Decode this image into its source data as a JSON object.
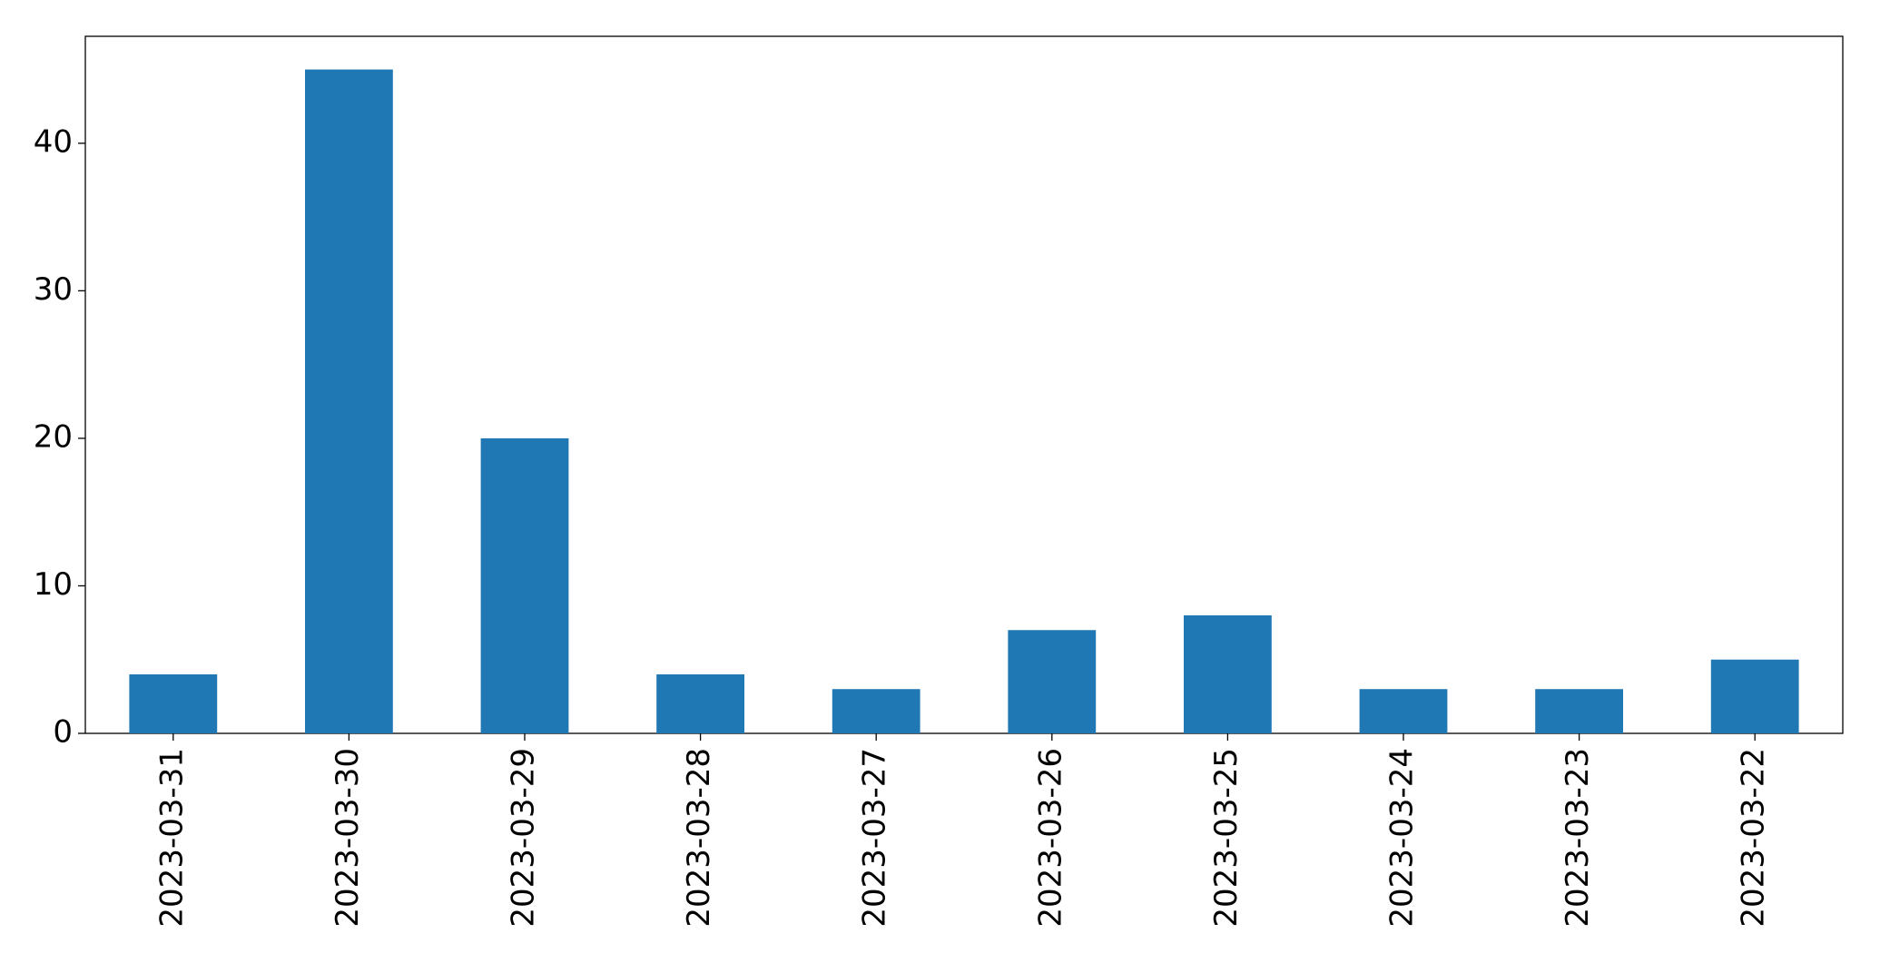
{
  "chart_data": {
    "type": "bar",
    "categories": [
      "2023-03-31",
      "2023-03-30",
      "2023-03-29",
      "2023-03-28",
      "2023-03-27",
      "2023-03-26",
      "2023-03-25",
      "2023-03-24",
      "2023-03-23",
      "2023-03-22"
    ],
    "values": [
      4,
      45,
      20,
      4,
      3,
      7,
      8,
      3,
      3,
      5
    ],
    "color": "#1f77b4",
    "ylim": [
      0,
      47.25
    ],
    "yticks": [
      0,
      10,
      20,
      30,
      40
    ],
    "grid": false
  }
}
